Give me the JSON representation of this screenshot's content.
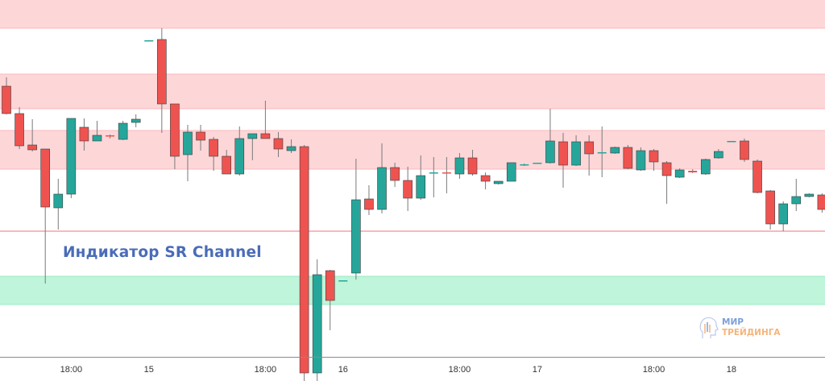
{
  "chart_data": {
    "type": "candlestick",
    "title": "Индикатор SR Channel",
    "ylim": [
      50.0,
      94.3
    ],
    "colors": {
      "up": "#26a69a",
      "down": "#ef5350",
      "wick": "#7a7a7a",
      "resistance": "#ff8a8f",
      "support": "#5ee0a0"
    },
    "x_ticks": [
      {
        "index": 5,
        "label": "18:00"
      },
      {
        "index": 11,
        "label": "15"
      },
      {
        "index": 20,
        "label": "18:00"
      },
      {
        "index": 26,
        "label": "16"
      },
      {
        "index": 35,
        "label": "18:00"
      },
      {
        "index": 41,
        "label": "17"
      },
      {
        "index": 50,
        "label": "18:00"
      },
      {
        "index": 56,
        "label": "18"
      }
    ],
    "zones": [
      {
        "type": "resistance",
        "top": 96.0,
        "bottom": 90.8
      },
      {
        "type": "resistance",
        "top": 85.1,
        "bottom": 80.8
      },
      {
        "type": "resistance",
        "top": 78.1,
        "bottom": 73.3
      },
      {
        "type": "resistance",
        "top": 65.7,
        "bottom": 65.5
      },
      {
        "type": "support",
        "top": 60.0,
        "bottom": 56.5
      }
    ],
    "ohlc": [
      [
        83.6,
        84.7,
        80.1,
        80.2
      ],
      [
        80.2,
        81.0,
        75.8,
        76.2
      ],
      [
        76.3,
        79.5,
        75.5,
        75.7
      ],
      [
        75.8,
        75.8,
        59.1,
        68.6
      ],
      [
        68.5,
        72.1,
        65.8,
        70.2
      ],
      [
        70.2,
        79.6,
        69.7,
        79.6
      ],
      [
        78.5,
        79.6,
        75.6,
        76.8
      ],
      [
        76.8,
        79.3,
        76.8,
        77.5
      ],
      [
        77.5,
        77.6,
        77.1,
        77.4
      ],
      [
        77.0,
        79.3,
        76.9,
        79.0
      ],
      [
        79.1,
        80.1,
        78.5,
        79.5
      ],
      [
        89.3,
        89.3,
        89.3,
        89.3
      ],
      [
        89.4,
        90.8,
        77.8,
        81.4
      ],
      [
        81.4,
        81.4,
        73.3,
        74.9
      ],
      [
        75.1,
        78.8,
        71.8,
        77.9
      ],
      [
        77.9,
        78.8,
        75.6,
        76.9
      ],
      [
        77.0,
        77.3,
        73.1,
        74.9
      ],
      [
        74.9,
        75.7,
        72.7,
        72.7
      ],
      [
        72.7,
        78.6,
        72.5,
        77.1
      ],
      [
        77.1,
        77.7,
        74.4,
        77.7
      ],
      [
        77.7,
        81.8,
        77.1,
        77.1
      ],
      [
        77.1,
        77.9,
        74.8,
        75.8
      ],
      [
        75.6,
        77.0,
        75.3,
        76.1
      ],
      [
        76.1,
        76.3,
        47.0,
        48.0
      ],
      [
        48.0,
        62.1,
        47.0,
        60.2
      ],
      [
        60.7,
        60.8,
        53.3,
        57.0
      ],
      [
        59.5,
        59.5,
        59.5,
        59.5
      ],
      [
        60.4,
        74.6,
        59.6,
        69.5
      ],
      [
        69.6,
        71.3,
        67.6,
        68.3
      ],
      [
        68.3,
        76.5,
        67.8,
        73.5
      ],
      [
        73.5,
        74.1,
        71.1,
        71.9
      ],
      [
        71.9,
        73.6,
        68.1,
        69.7
      ],
      [
        69.7,
        75.0,
        69.5,
        72.5
      ],
      [
        72.8,
        74.8,
        69.8,
        72.9
      ],
      [
        72.9,
        74.8,
        70.3,
        72.8
      ],
      [
        72.7,
        75.3,
        72.1,
        74.7
      ],
      [
        74.7,
        75.7,
        72.5,
        72.7
      ],
      [
        72.5,
        72.9,
        70.8,
        71.8
      ],
      [
        71.5,
        71.8,
        71.4,
        71.8
      ],
      [
        71.8,
        74.1,
        71.8,
        74.1
      ],
      [
        73.8,
        74.0,
        73.7,
        73.9
      ],
      [
        74.0,
        74.1,
        74.0,
        74.1
      ],
      [
        74.1,
        80.8,
        74.0,
        76.8
      ],
      [
        76.7,
        77.8,
        71.0,
        73.8
      ],
      [
        73.8,
        77.5,
        73.7,
        76.7
      ],
      [
        76.7,
        77.5,
        72.5,
        75.2
      ],
      [
        75.4,
        78.6,
        72.3,
        75.4
      ],
      [
        75.3,
        76.1,
        75.2,
        76.0
      ],
      [
        76.0,
        76.3,
        73.3,
        73.4
      ],
      [
        73.2,
        76.0,
        73.1,
        75.6
      ],
      [
        75.6,
        75.8,
        73.1,
        74.2
      ],
      [
        74.1,
        74.3,
        69.0,
        72.5
      ],
      [
        72.3,
        73.4,
        72.2,
        73.2
      ],
      [
        73.1,
        73.3,
        72.8,
        72.9
      ],
      [
        72.7,
        74.6,
        72.6,
        74.5
      ],
      [
        74.7,
        75.8,
        74.6,
        75.5
      ],
      [
        76.8,
        76.8,
        76.8,
        76.8
      ],
      [
        76.8,
        77.1,
        74.2,
        74.5
      ],
      [
        74.3,
        74.5,
        70.3,
        70.4
      ],
      [
        70.6,
        70.7,
        65.8,
        66.5
      ],
      [
        66.5,
        69.3,
        65.6,
        69.0
      ],
      [
        69.0,
        72.1,
        68.1,
        69.9
      ],
      [
        69.9,
        70.3,
        69.8,
        70.2
      ],
      [
        70.1,
        70.3,
        67.9,
        68.3
      ]
    ]
  },
  "logo": {
    "line1": "МИР",
    "line2": "ТРЕЙДИНГА"
  }
}
